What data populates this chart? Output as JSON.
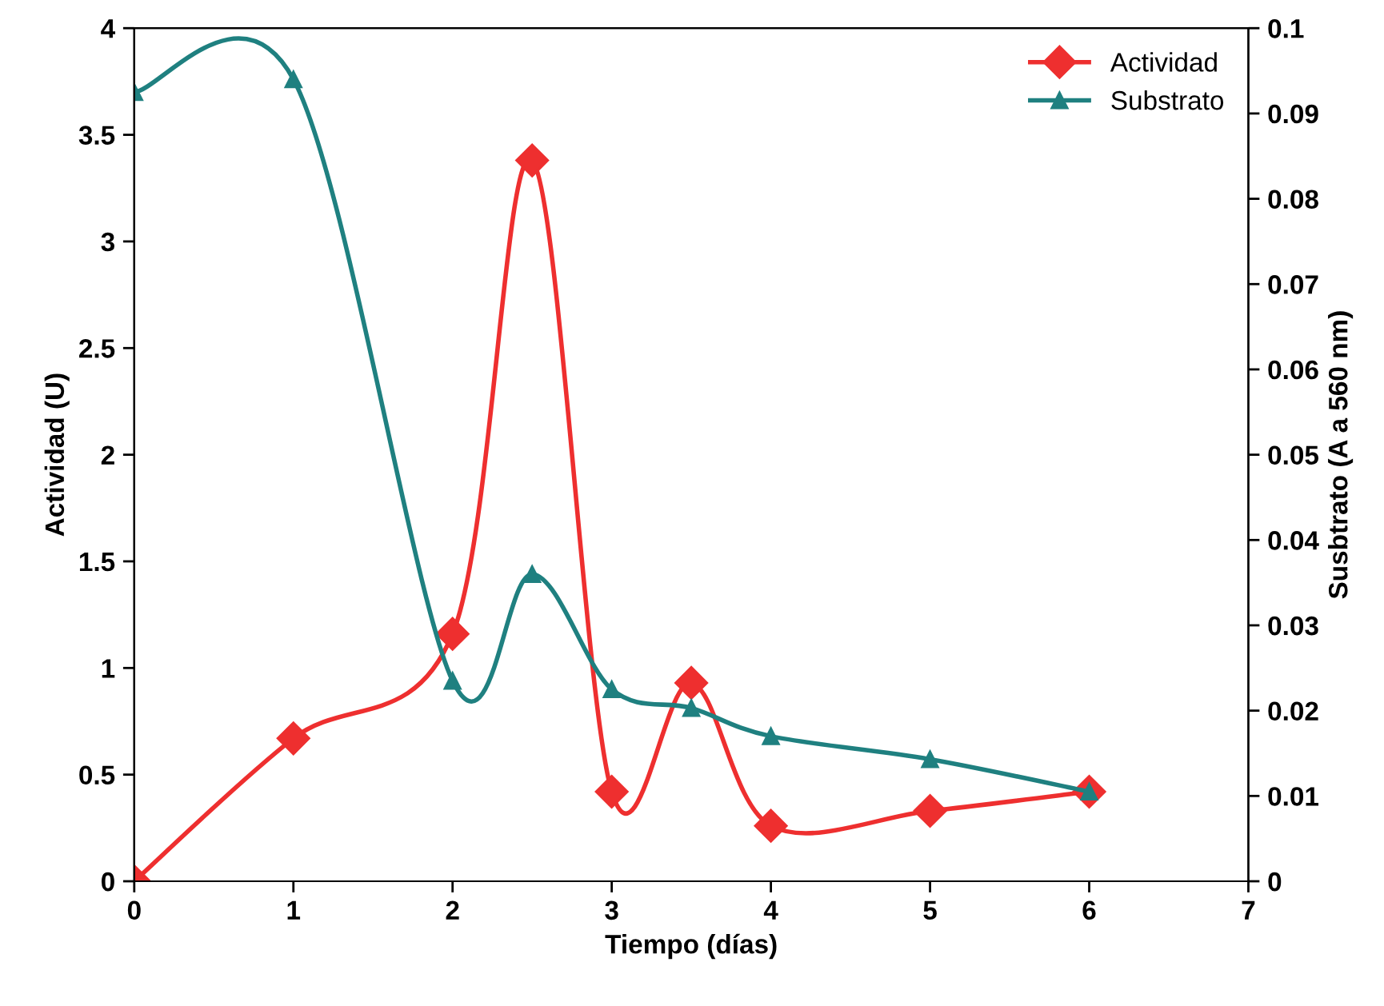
{
  "chart_data": {
    "type": "line",
    "xlabel": "Tiempo (días)",
    "ylabel": "Actividad (U)",
    "y2label": "Susbtrato (A a 560 nm)",
    "xlim": [
      0,
      7
    ],
    "xticks": [
      0,
      1,
      2,
      3,
      4,
      5,
      6,
      7
    ],
    "ylim": [
      0,
      4
    ],
    "yticks": [
      0,
      0.5,
      1,
      1.5,
      2,
      2.5,
      3,
      3.5,
      4
    ],
    "y2lim": [
      0,
      0.1
    ],
    "y2ticks": [
      0,
      0.01,
      0.02,
      0.03,
      0.04,
      0.05,
      0.06,
      0.07,
      0.08,
      0.09,
      0.1
    ],
    "x": [
      0,
      1,
      2,
      2.5,
      3,
      3.5,
      4,
      5,
      6
    ],
    "series": [
      {
        "name": "Actividad",
        "color": "#ee2f2f",
        "marker": "diamond",
        "values": [
          0,
          0.67,
          1.16,
          3.38,
          0.42,
          0.93,
          0.26,
          0.33,
          0.42
        ]
      },
      {
        "name": "Substrato",
        "color": "#1f8080",
        "marker": "triangle",
        "axis": "y2",
        "values": [
          0.0925,
          0.094,
          0.0235,
          0.036,
          0.0225,
          0.0203,
          0.017,
          0.0143,
          0.0105
        ]
      }
    ],
    "legend": "top right",
    "grid": false,
    "line_style": "solid"
  }
}
